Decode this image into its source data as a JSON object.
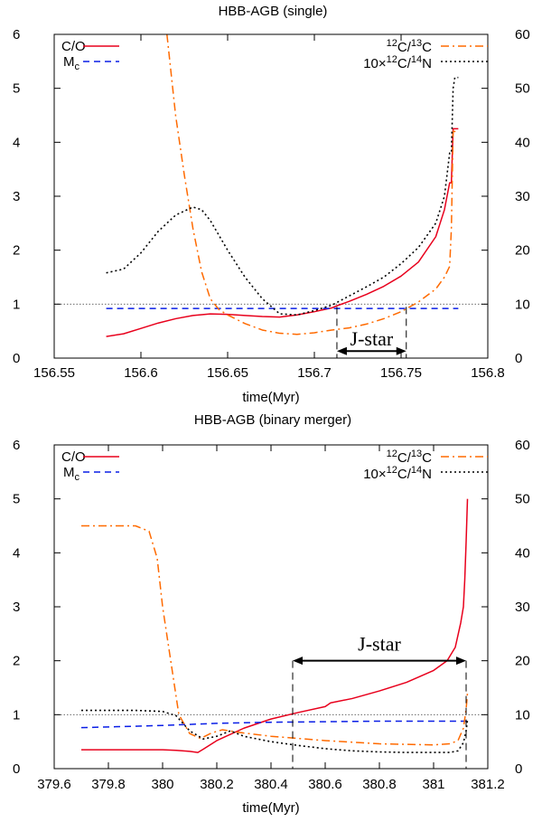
{
  "colors": {
    "co": "#e8001c",
    "mc": "#0a1ee6",
    "c12c13": "#ff6a00",
    "c12n14": "#000000",
    "ref": "#555555",
    "axis": "#000000"
  },
  "chart_data": [
    {
      "type": "line",
      "title": "HBB-AGB (single)",
      "xlabel": "time(Myr)",
      "xlim": [
        156.55,
        156.8
      ],
      "ylim_left": [
        0,
        6
      ],
      "ylim_right": [
        0,
        60
      ],
      "x_ticks": [
        "156.55",
        "156.6",
        "156.65",
        "156.7",
        "156.75",
        "156.8"
      ],
      "y_ticks_left": [
        "0",
        "1",
        "2",
        "3",
        "4",
        "5",
        "6"
      ],
      "y_ticks_right": [
        "0",
        "10",
        "20",
        "30",
        "40",
        "50",
        "60"
      ],
      "reference_line_y": 1,
      "legend": {
        "co": "C/O",
        "mc_base": "M",
        "mc_sub": "c",
        "c12c13_sup1": "12",
        "c12c13_mid": "C/",
        "c12c13_sup2": "13",
        "c12c13_end": "C",
        "c12n14_pre": "10×",
        "c12n14_sup1": "12",
        "c12n14_mid": "C/",
        "c12n14_sup2": "14",
        "c12n14_end": "N"
      },
      "annotation": {
        "label": "J-star",
        "x_start": 156.713,
        "x_end": 156.753,
        "y_arrow": 0.13,
        "y_top": 0.95
      },
      "series": [
        {
          "name": "C/O",
          "axis": "left",
          "style": "solid",
          "colorKey": "co",
          "x": [
            156.58,
            156.59,
            156.6,
            156.61,
            156.62,
            156.63,
            156.64,
            156.65,
            156.66,
            156.67,
            156.68,
            156.69,
            156.7,
            156.71,
            156.713,
            156.72,
            156.73,
            156.74,
            156.75,
            156.76,
            156.77,
            156.775,
            156.778,
            156.779,
            156.78,
            156.782,
            156.783
          ],
          "y": [
            0.4,
            0.45,
            0.55,
            0.65,
            0.73,
            0.79,
            0.82,
            0.81,
            0.79,
            0.77,
            0.76,
            0.8,
            0.86,
            0.93,
            0.97,
            1.05,
            1.18,
            1.33,
            1.52,
            1.78,
            2.25,
            2.75,
            3.25,
            3.25,
            4.25,
            4.25,
            4.25
          ]
        },
        {
          "name": "Mc",
          "axis": "left",
          "style": "dashed",
          "colorKey": "mc",
          "x": [
            156.58,
            156.783
          ],
          "y": [
            0.92,
            0.92
          ]
        },
        {
          "name": "12C/13C",
          "axis": "right",
          "style": "dashdot",
          "colorKey": "c12c13",
          "x": [
            156.615,
            156.62,
            156.625,
            156.63,
            156.635,
            156.64,
            156.645,
            156.65,
            156.66,
            156.67,
            156.68,
            156.69,
            156.7,
            156.71,
            156.72,
            156.73,
            156.74,
            156.75,
            156.76,
            156.77,
            156.775,
            156.778,
            156.779,
            156.78,
            156.783
          ],
          "y": [
            60,
            45,
            34,
            24,
            16,
            11,
            9,
            8,
            6.4,
            5.2,
            4.6,
            4.4,
            4.7,
            5.2,
            5.6,
            6.3,
            7.3,
            8.6,
            10.4,
            12.8,
            15,
            17,
            24,
            42,
            42
          ]
        },
        {
          "name": "10x12C/14N",
          "axis": "right",
          "style": "dotted",
          "colorKey": "c12n14",
          "x": [
            156.58,
            156.59,
            156.6,
            156.61,
            156.62,
            156.63,
            156.635,
            156.64,
            156.65,
            156.66,
            156.67,
            156.68,
            156.69,
            156.7,
            156.71,
            156.72,
            156.73,
            156.74,
            156.75,
            156.76,
            156.77,
            156.775,
            156.778,
            156.779,
            156.78,
            156.781,
            156.783
          ],
          "y": [
            15.8,
            16.5,
            19.5,
            23.5,
            26.5,
            28,
            27.5,
            25.5,
            20,
            15,
            11,
            8.2,
            8.0,
            8.8,
            9.8,
            11.5,
            13.2,
            15,
            17.5,
            20.5,
            25,
            30,
            38,
            38,
            50,
            52,
            52
          ]
        }
      ]
    },
    {
      "type": "line",
      "title": "HBB-AGB (binary merger)",
      "xlabel": "time(Myr)",
      "xlim": [
        379.6,
        381.2
      ],
      "ylim_left": [
        0,
        6
      ],
      "ylim_right": [
        0,
        60
      ],
      "x_ticks": [
        "379.6",
        "379.8",
        "380",
        "380.2",
        "380.4",
        "380.6",
        "380.8",
        "381",
        "381.2"
      ],
      "y_ticks_left": [
        "0",
        "1",
        "2",
        "3",
        "4",
        "5",
        "6"
      ],
      "y_ticks_right": [
        "0",
        "10",
        "20",
        "30",
        "40",
        "50",
        "60"
      ],
      "reference_line_y": 1,
      "legend": {
        "co": "C/O",
        "mc_base": "M",
        "mc_sub": "c",
        "c12c13_sup1": "12",
        "c12c13_mid": "C/",
        "c12c13_sup2": "13",
        "c12c13_end": "C",
        "c12n14_pre": "10×",
        "c12n14_sup1": "12",
        "c12n14_mid": "C/",
        "c12n14_sup2": "14",
        "c12n14_end": "N"
      },
      "annotation": {
        "label": "J-star",
        "x_start": 380.48,
        "x_end": 381.12,
        "y_arrow": 2.0,
        "y_top": 2.0
      },
      "series": [
        {
          "name": "C/O",
          "axis": "left",
          "style": "solid",
          "colorKey": "co",
          "x": [
            379.7,
            379.8,
            379.9,
            380.0,
            380.05,
            380.1,
            380.13,
            380.15,
            380.2,
            380.3,
            380.4,
            380.5,
            380.6,
            380.62,
            380.7,
            380.8,
            380.9,
            381.0,
            381.05,
            381.08,
            381.1,
            381.11,
            381.115,
            381.12,
            381.125
          ],
          "y": [
            0.35,
            0.35,
            0.35,
            0.35,
            0.34,
            0.32,
            0.3,
            0.36,
            0.52,
            0.75,
            0.92,
            1.04,
            1.15,
            1.22,
            1.3,
            1.44,
            1.6,
            1.82,
            2.0,
            2.25,
            2.7,
            3.0,
            3.5,
            4.2,
            5.0
          ]
        },
        {
          "name": "Mc",
          "axis": "left",
          "style": "dashed",
          "colorKey": "mc",
          "x": [
            379.7,
            380.0,
            380.2,
            380.4,
            380.6,
            380.8,
            381.0,
            381.125
          ],
          "y": [
            0.76,
            0.8,
            0.84,
            0.86,
            0.87,
            0.88,
            0.88,
            0.88
          ]
        },
        {
          "name": "12C/13C",
          "axis": "right",
          "style": "dashdot",
          "colorKey": "c12c13",
          "x": [
            379.7,
            379.9,
            379.95,
            379.98,
            380.0,
            380.03,
            380.06,
            380.1,
            380.14,
            380.18,
            380.22,
            380.3,
            380.4,
            380.5,
            380.6,
            380.8,
            381.0,
            381.06,
            381.09,
            381.11,
            381.12,
            381.125
          ],
          "y": [
            45,
            45,
            44,
            39,
            30,
            20,
            10,
            6.5,
            5.6,
            6.6,
            7.2,
            6.6,
            6.0,
            5.6,
            5.2,
            4.6,
            4.4,
            4.6,
            5.2,
            7.5,
            11,
            14
          ]
        },
        {
          "name": "10x12C/14N",
          "axis": "right",
          "style": "dotted",
          "colorKey": "c12n14",
          "x": [
            379.7,
            379.9,
            380.0,
            380.05,
            380.1,
            380.15,
            380.2,
            380.25,
            380.3,
            380.4,
            380.5,
            380.6,
            380.7,
            380.8,
            380.9,
            381.0,
            381.06,
            381.09,
            381.11,
            381.12,
            381.125
          ],
          "y": [
            10.8,
            10.8,
            10.6,
            9.8,
            7.0,
            5.5,
            6.0,
            7.0,
            6.0,
            5.0,
            4.3,
            3.7,
            3.3,
            3.1,
            3.0,
            3.0,
            3.0,
            3.3,
            4.8,
            7.0,
            9.0
          ]
        }
      ]
    }
  ]
}
